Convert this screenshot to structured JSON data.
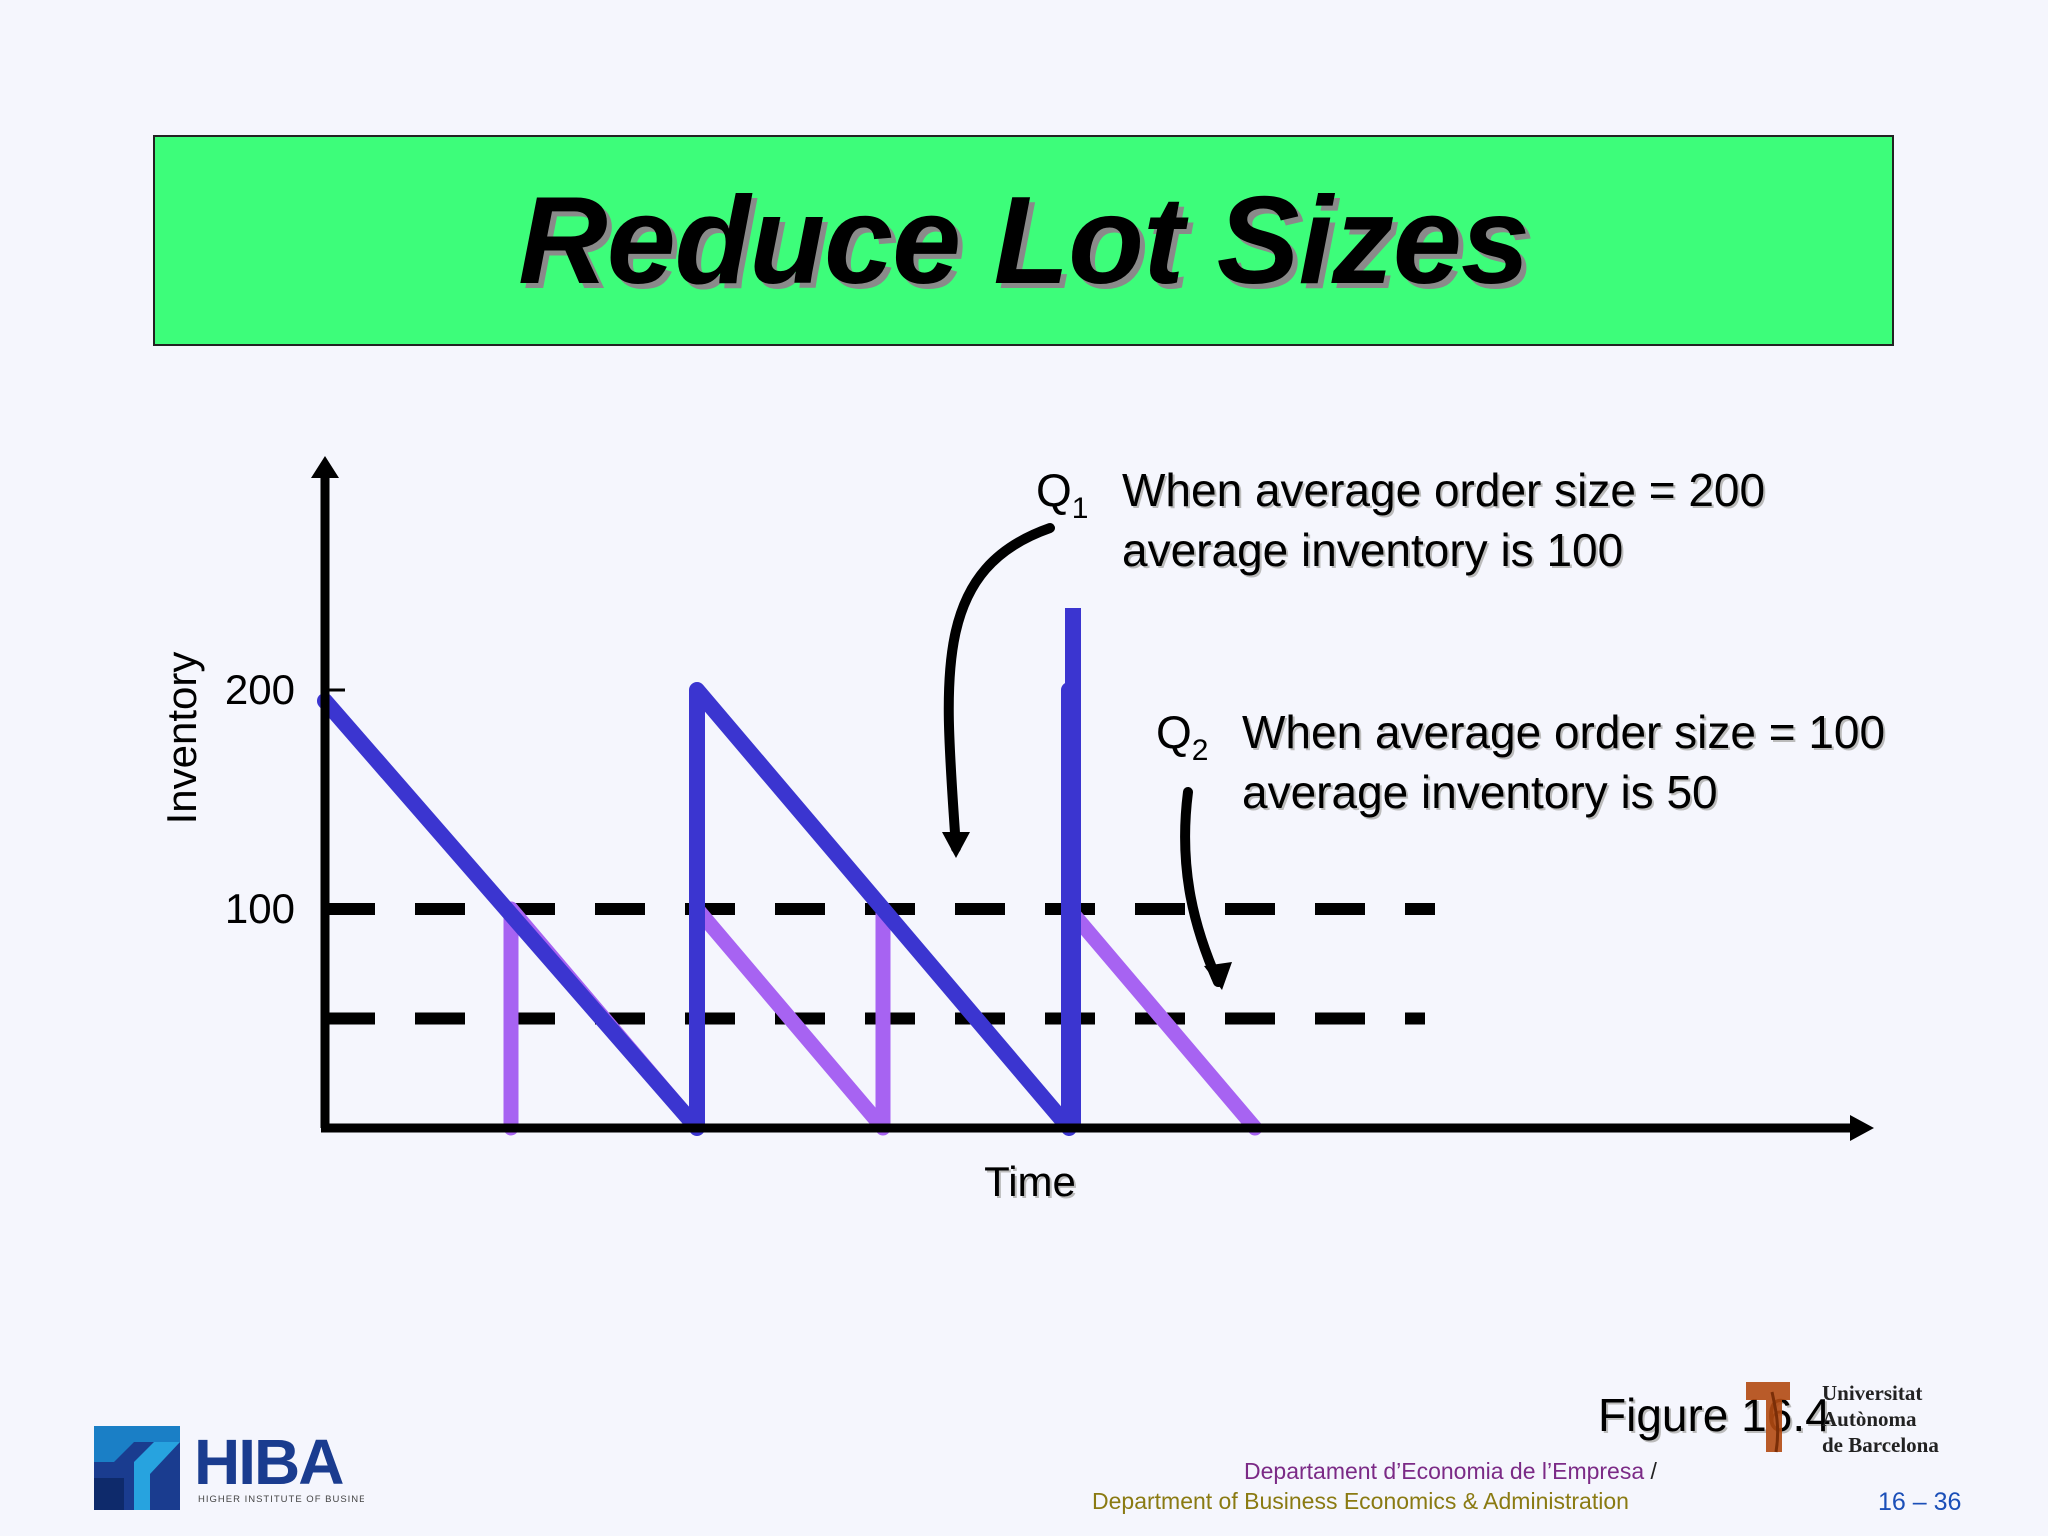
{
  "slide": {
    "title": "Reduce Lot Sizes",
    "figure_label": "Figure 16.4",
    "department_ca": "Departament d’Economia de l’Empresa",
    "department_slash": "/",
    "department_en": "Department of Business Economics & Administration",
    "page_number": "16 – 36",
    "hiba_logo_text": "HIBA",
    "hiba_logo_sub": "HIGHER INSTITUTE OF BUSINESS ADMINISTRATION",
    "uab_name": "Universitat\nAutònoma\nde Barcelona"
  },
  "chart_data": {
    "type": "line",
    "xlabel": "Time",
    "ylabel": "Inventory",
    "yticks": [
      100,
      200
    ],
    "ylim": [
      0,
      240
    ],
    "xlim": [
      0,
      8.5
    ],
    "series": [
      {
        "name": "Q1",
        "color": "#3b35d0",
        "points": [
          [
            0,
            195
          ],
          [
            2,
            0
          ],
          [
            2,
            200
          ],
          [
            4,
            0
          ],
          [
            4,
            200
          ],
          [
            4.02,
            190
          ]
        ]
      },
      {
        "name": "Q2",
        "color": "#a763f2",
        "points": [
          [
            1,
            0
          ],
          [
            1,
            100
          ],
          [
            2,
            0
          ],
          [
            2,
            100
          ],
          [
            3,
            0
          ],
          [
            3,
            100
          ],
          [
            4,
            0
          ],
          [
            4,
            100
          ],
          [
            5,
            0
          ]
        ]
      }
    ],
    "reference_lines": [
      {
        "name": "average inventory Q1",
        "y": 100,
        "style": "dashed"
      },
      {
        "name": "average inventory Q2",
        "y": 50,
        "style": "dashed"
      }
    ],
    "annotations": [
      {
        "label": "Q",
        "subscript": "1",
        "lines": [
          "When average order size = 200",
          "average inventory is 100"
        ]
      },
      {
        "label": "Q",
        "subscript": "2",
        "lines": [
          "When average order size = 100",
          "average inventory is 50"
        ]
      }
    ]
  }
}
